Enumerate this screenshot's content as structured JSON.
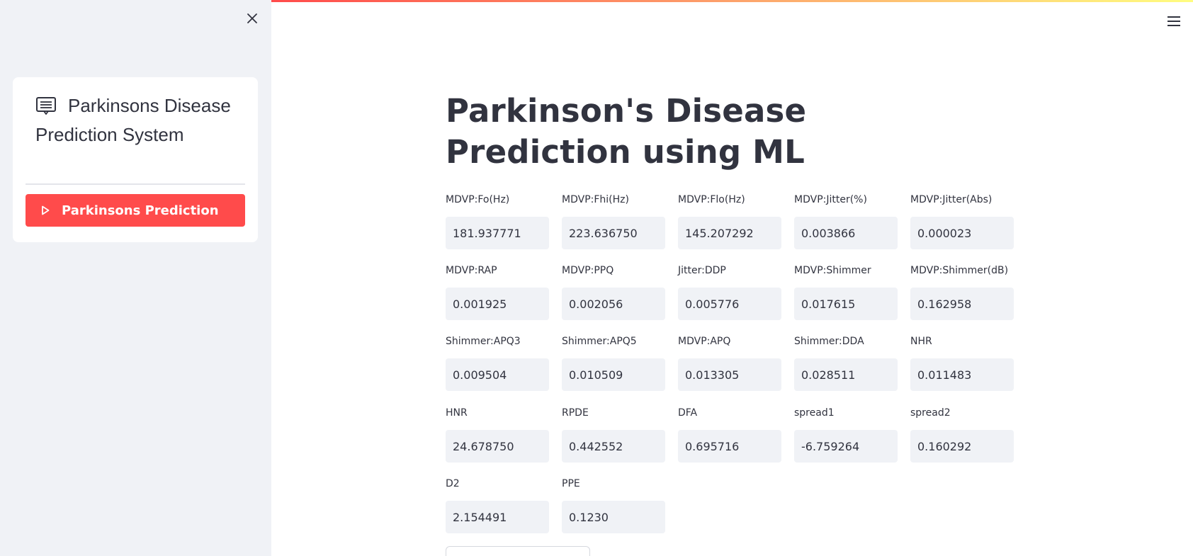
{
  "sidebar": {
    "menu_title": "Parkinsons Disease Prediction System",
    "active_item": "Parkinsons Prediction"
  },
  "main": {
    "title": "Parkinson's Disease Prediction using ML",
    "fields": [
      {
        "label": "MDVP:Fo(Hz)",
        "value": "181.937771"
      },
      {
        "label": "MDVP:Fhi(Hz)",
        "value": "223.636750"
      },
      {
        "label": "MDVP:Flo(Hz)",
        "value": "145.207292"
      },
      {
        "label": "MDVP:Jitter(%)",
        "value": "0.003866"
      },
      {
        "label": "MDVP:Jitter(Abs)",
        "value": "0.000023"
      },
      {
        "label": "MDVP:RAP",
        "value": "0.001925"
      },
      {
        "label": "MDVP:PPQ",
        "value": "0.002056"
      },
      {
        "label": "Jitter:DDP",
        "value": "0.005776"
      },
      {
        "label": "MDVP:Shimmer",
        "value": "0.017615"
      },
      {
        "label": "MDVP:Shimmer(dB)",
        "value": "0.162958"
      },
      {
        "label": "Shimmer:APQ3",
        "value": "0.009504"
      },
      {
        "label": "Shimmer:APQ5",
        "value": "0.010509"
      },
      {
        "label": "MDVP:APQ",
        "value": "0.013305"
      },
      {
        "label": "Shimmer:DDA",
        "value": "0.028511"
      },
      {
        "label": "NHR",
        "value": "0.011483"
      },
      {
        "label": "HNR",
        "value": "24.678750"
      },
      {
        "label": "RPDE",
        "value": "0.442552"
      },
      {
        "label": "DFA",
        "value": "0.695716"
      },
      {
        "label": "spread1",
        "value": "-6.759264"
      },
      {
        "label": "spread2",
        "value": "0.160292"
      },
      {
        "label": "D2",
        "value": "2.154491"
      },
      {
        "label": "PPE",
        "value": "0.1230"
      }
    ]
  },
  "colors": {
    "accent": "#ff4b4b",
    "sidebar_bg": "#f0f2f6",
    "input_bg": "#f0f2f6",
    "text": "#31333f"
  },
  "icons": {
    "close": "close-icon",
    "menu": "hamburger-menu-icon",
    "title": "list-alt-icon",
    "item": "play-icon"
  }
}
